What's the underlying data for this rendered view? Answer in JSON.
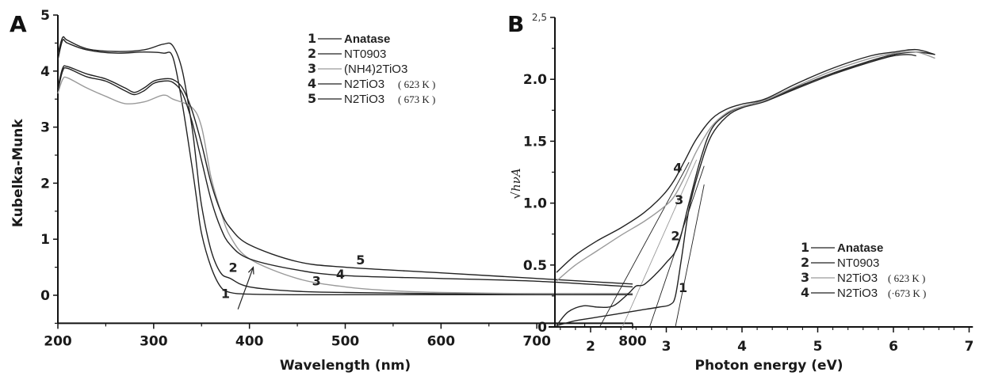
{
  "chart_data": [
    {
      "panel": "A",
      "type": "line",
      "title": "",
      "xlabel": "Wavelength (nm)",
      "ylabel": "Kubelka-Munk",
      "xlim": [
        200,
        800
      ],
      "ylim": [
        -0.5,
        5
      ],
      "xticks": [
        200,
        300,
        400,
        500,
        600,
        700,
        800
      ],
      "yticks": [
        0,
        1,
        2,
        3,
        4,
        5
      ],
      "grid": false,
      "legend_position": "top-right",
      "legend": [
        {
          "num": "1",
          "label": "Anatase",
          "suffix": ""
        },
        {
          "num": "2",
          "label": "NT0903",
          "suffix": ""
        },
        {
          "num": "3",
          "label": "(NH4)2TiO3",
          "suffix": ""
        },
        {
          "num": "4",
          "label": "N2TiO3",
          "suffix": "( 623 K )"
        },
        {
          "num": "5",
          "label": "N2TiO3",
          "suffix": "( 673 K )"
        }
      ],
      "series": [
        {
          "name": "1",
          "label": "Anatase",
          "color": "#222222",
          "x": [
            200,
            205,
            210,
            230,
            260,
            290,
            310,
            320,
            330,
            340,
            345,
            350,
            360,
            370,
            380,
            400,
            450,
            500,
            600,
            700,
            800
          ],
          "y": [
            4.2,
            4.55,
            4.5,
            4.38,
            4.32,
            4.34,
            4.32,
            4.25,
            3.4,
            2.3,
            1.7,
            1.1,
            0.5,
            0.15,
            0.05,
            0.02,
            0.01,
            0.01,
            0.01,
            0.01,
            0.01
          ]
        },
        {
          "name": "2",
          "label": "NT0903",
          "color": "#222222",
          "x": [
            200,
            205,
            210,
            230,
            260,
            290,
            310,
            320,
            330,
            340,
            345,
            350,
            360,
            370,
            380,
            400,
            450,
            500,
            600,
            700,
            800
          ],
          "y": [
            4.3,
            4.6,
            4.55,
            4.4,
            4.35,
            4.38,
            4.48,
            4.45,
            4.0,
            3.0,
            2.3,
            1.6,
            0.8,
            0.4,
            0.3,
            0.15,
            0.07,
            0.05,
            0.03,
            0.03,
            0.03
          ]
        },
        {
          "name": "3",
          "label": "(NH4)2TiO3",
          "color": "#9a9a9a",
          "x": [
            200,
            205,
            210,
            230,
            250,
            270,
            290,
            310,
            320,
            340,
            350,
            360,
            370,
            380,
            400,
            450,
            500,
            550,
            600,
            700,
            800
          ],
          "y": [
            3.6,
            3.85,
            3.88,
            3.7,
            3.55,
            3.42,
            3.45,
            3.57,
            3.5,
            3.35,
            3.0,
            2.1,
            1.5,
            1.05,
            0.65,
            0.3,
            0.15,
            0.08,
            0.05,
            0.03,
            0.03
          ]
        },
        {
          "name": "4",
          "label": "N2TiO3 (623 K)",
          "color": "#222222",
          "x": [
            200,
            205,
            210,
            230,
            250,
            270,
            280,
            290,
            300,
            310,
            320,
            330,
            340,
            350,
            360,
            370,
            380,
            400,
            450,
            500,
            600,
            700,
            800
          ],
          "y": [
            3.65,
            4.0,
            4.05,
            3.9,
            3.82,
            3.65,
            3.58,
            3.65,
            3.78,
            3.82,
            3.8,
            3.6,
            3.1,
            2.4,
            1.7,
            1.2,
            0.9,
            0.65,
            0.45,
            0.35,
            0.3,
            0.25,
            0.15
          ]
        },
        {
          "name": "5",
          "label": "N2TiO3 (673 K)",
          "color": "#222222",
          "x": [
            200,
            205,
            210,
            230,
            250,
            270,
            280,
            290,
            300,
            310,
            320,
            330,
            340,
            350,
            360,
            370,
            380,
            400,
            450,
            500,
            600,
            700,
            800
          ],
          "y": [
            3.7,
            4.05,
            4.08,
            3.95,
            3.86,
            3.7,
            3.62,
            3.7,
            3.82,
            3.86,
            3.85,
            3.7,
            3.3,
            2.7,
            2.0,
            1.5,
            1.2,
            0.9,
            0.6,
            0.5,
            0.4,
            0.3,
            0.2
          ]
        }
      ],
      "curve_labels": [
        {
          "text": "1",
          "x": 375,
          "y": -0.05
        },
        {
          "text": "2",
          "x": 383,
          "y": 0.42
        },
        {
          "text": "3",
          "x": 470,
          "y": 0.18
        },
        {
          "text": "4",
          "x": 495,
          "y": 0.3
        },
        {
          "text": "5",
          "x": 516,
          "y": 0.55
        }
      ],
      "arrow": {
        "from": [
          388,
          -0.25
        ],
        "to": [
          404,
          0.5
        ]
      }
    },
    {
      "panel": "B",
      "type": "line",
      "title": "",
      "xlabel": "Photon energy (eV)",
      "ylabel": "√hνA",
      "xlim": [
        1.5,
        7.1
      ],
      "ylim": [
        0,
        2.5
      ],
      "xticks": [
        2,
        3,
        4,
        5,
        6,
        7
      ],
      "yticks": [
        0,
        0.5,
        1.0,
        1.5,
        2.0,
        2.5
      ],
      "ytick_labels": [
        "0",
        "0.5",
        "1.0",
        "1.5",
        "2.0",
        "2,5"
      ],
      "grid": false,
      "legend_position": "bottom-right",
      "legend": [
        {
          "num": "1",
          "label": "Anatase",
          "suffix": ""
        },
        {
          "num": "2",
          "label": "NT0903",
          "suffix": ""
        },
        {
          "num": "3",
          "label": "N2TiO3",
          "suffix": "( 623 K )"
        },
        {
          "num": "4",
          "label": "N2TiO3",
          "suffix": "(·673 K )"
        }
      ],
      "series": [
        {
          "name": "1",
          "label": "Anatase",
          "color": "#222222",
          "x": [
            1.55,
            1.8,
            2.0,
            2.3,
            2.6,
            2.9,
            3.05,
            3.12,
            3.2,
            3.3,
            3.45,
            3.6,
            3.8,
            4.0,
            4.3,
            4.7,
            5.2,
            5.7,
            6.0,
            6.2,
            6.3
          ],
          "y": [
            0.01,
            0.05,
            0.07,
            0.1,
            0.13,
            0.16,
            0.18,
            0.25,
            0.55,
            0.95,
            1.3,
            1.55,
            1.7,
            1.77,
            1.82,
            1.92,
            2.04,
            2.14,
            2.19,
            2.2,
            2.19
          ]
        },
        {
          "name": "2",
          "label": "NT0903",
          "color": "#222222",
          "x": [
            1.55,
            1.7,
            1.9,
            2.1,
            2.3,
            2.5,
            2.6,
            2.7,
            2.85,
            3.0,
            3.15,
            3.3,
            3.45,
            3.6,
            3.8,
            4.0,
            4.3,
            4.7,
            5.2,
            5.7,
            6.0,
            6.3,
            6.55
          ],
          "y": [
            0.01,
            0.12,
            0.17,
            0.16,
            0.17,
            0.27,
            0.33,
            0.34,
            0.42,
            0.52,
            0.65,
            1.0,
            1.35,
            1.6,
            1.72,
            1.78,
            1.83,
            1.93,
            2.05,
            2.15,
            2.2,
            2.22,
            2.2
          ]
        },
        {
          "name": "3",
          "label": "N2TiO3 (623 K)",
          "color": "#9a9a9a",
          "x": [
            1.55,
            1.8,
            2.1,
            2.4,
            2.7,
            2.95,
            3.1,
            3.25,
            3.4,
            3.6,
            3.8,
            4.0,
            4.3,
            4.7,
            5.2,
            5.7,
            6.0,
            6.3,
            6.55
          ],
          "y": [
            0.37,
            0.5,
            0.62,
            0.74,
            0.85,
            0.96,
            1.05,
            1.22,
            1.42,
            1.62,
            1.73,
            1.78,
            1.83,
            1.94,
            2.07,
            2.17,
            2.21,
            2.22,
            2.17
          ]
        },
        {
          "name": "4",
          "label": "N2TiO3 (673 K)",
          "color": "#222222",
          "x": [
            1.55,
            1.8,
            2.1,
            2.4,
            2.7,
            2.95,
            3.1,
            3.25,
            3.4,
            3.6,
            3.8,
            4.0,
            4.3,
            4.7,
            5.2,
            5.7,
            6.0,
            6.3,
            6.55
          ],
          "y": [
            0.44,
            0.58,
            0.7,
            0.8,
            0.92,
            1.06,
            1.18,
            1.35,
            1.52,
            1.68,
            1.76,
            1.8,
            1.84,
            1.96,
            2.09,
            2.19,
            2.22,
            2.24,
            2.2
          ]
        }
      ],
      "tangent_lines": [
        {
          "series": "1",
          "color": "#222222",
          "x": [
            3.12,
            3.5
          ],
          "y": [
            0,
            1.15
          ]
        },
        {
          "series": "2",
          "color": "#222222",
          "x": [
            2.78,
            3.5
          ],
          "y": [
            0,
            1.3
          ]
        },
        {
          "series": "3",
          "color": "#9a9a9a",
          "x": [
            2.42,
            3.4
          ],
          "y": [
            0,
            1.35
          ]
        },
        {
          "series": "4",
          "color": "#222222",
          "x": [
            2.12,
            3.3
          ],
          "y": [
            0,
            1.33
          ]
        }
      ],
      "curve_labels": [
        {
          "text": "1",
          "x": 3.22,
          "y": 0.28
        },
        {
          "text": "2",
          "x": 3.12,
          "y": 0.7
        },
        {
          "text": "3",
          "x": 3.17,
          "y": 0.99
        },
        {
          "text": "4",
          "x": 3.15,
          "y": 1.25
        }
      ]
    }
  ],
  "panels": {
    "a_label": "A",
    "b_label": "B"
  }
}
